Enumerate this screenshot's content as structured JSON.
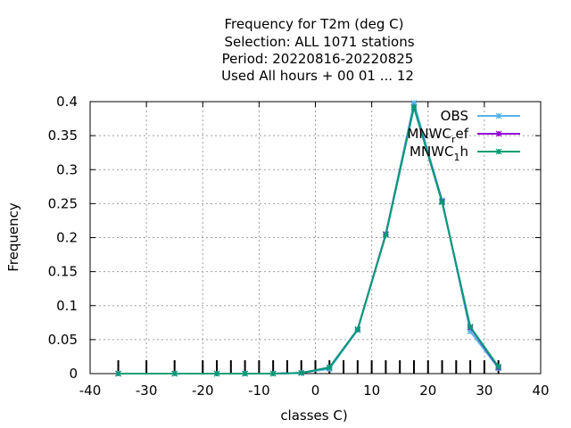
{
  "chart_data": {
    "type": "line",
    "title_lines": [
      "Frequency  for T2m (deg C)",
      "Selection: ALL   1071 stations",
      "Period: 20220816-20220825",
      "Used  All hours + 00 01 ... 12"
    ],
    "xlabel": "classes C)",
    "ylabel": "Frequency",
    "xlim": [
      -40,
      40
    ],
    "ylim": [
      0,
      0.4
    ],
    "x_ticks": [
      -40,
      -30,
      -20,
      -10,
      0,
      10,
      20,
      30,
      40
    ],
    "y_ticks": [
      0,
      0.05,
      0.1,
      0.15,
      0.2,
      0.25,
      0.3,
      0.35,
      0.4
    ],
    "x_tick_labels": [
      "-40",
      "-30",
      "-20",
      "-10",
      "0",
      "10",
      "20",
      "30",
      "40"
    ],
    "y_tick_labels": [
      "0",
      "0.05",
      "0.1",
      "0.15",
      "0.2",
      "0.25",
      "0.3",
      "0.35",
      "0.4"
    ],
    "grid": true,
    "legend_position": "top-right",
    "class_marks": [
      -35,
      -30,
      -25,
      -20,
      -17.5,
      -15,
      -12.5,
      -10,
      -7.5,
      -5,
      -2.5,
      0,
      2.5,
      5,
      7.5,
      10,
      12.5,
      15,
      17.5,
      20,
      22.5,
      25,
      27.5,
      30,
      32.5
    ],
    "x": [
      -35,
      -25,
      -17.5,
      -12.5,
      -7.5,
      -2.5,
      2.5,
      7.5,
      12.5,
      17.5,
      22.5,
      27.5,
      32.5
    ],
    "series": [
      {
        "name": "OBS",
        "name_main": "OBS",
        "name_sub": "",
        "name_tail": "",
        "color": "#56b4e9",
        "values": [
          0,
          0,
          0,
          0,
          0,
          0.001,
          0.007,
          0.064,
          0.205,
          0.398,
          0.255,
          0.062,
          0.008
        ]
      },
      {
        "name": "MNWC_ref",
        "name_main": "MNWC",
        "name_sub": "r",
        "name_tail": "ef",
        "color": "#9400d3",
        "values": [
          0,
          0,
          0,
          0,
          0,
          0.001,
          0.009,
          0.065,
          0.205,
          0.392,
          0.253,
          0.068,
          0.009
        ]
      },
      {
        "name": "MNWC_1h",
        "name_main": "MNWC",
        "name_sub": "1",
        "name_tail": "h",
        "color": "#009e73",
        "values": [
          0,
          0,
          0,
          0,
          0,
          0.001,
          0.009,
          0.065,
          0.204,
          0.392,
          0.252,
          0.069,
          0.01
        ]
      }
    ]
  }
}
